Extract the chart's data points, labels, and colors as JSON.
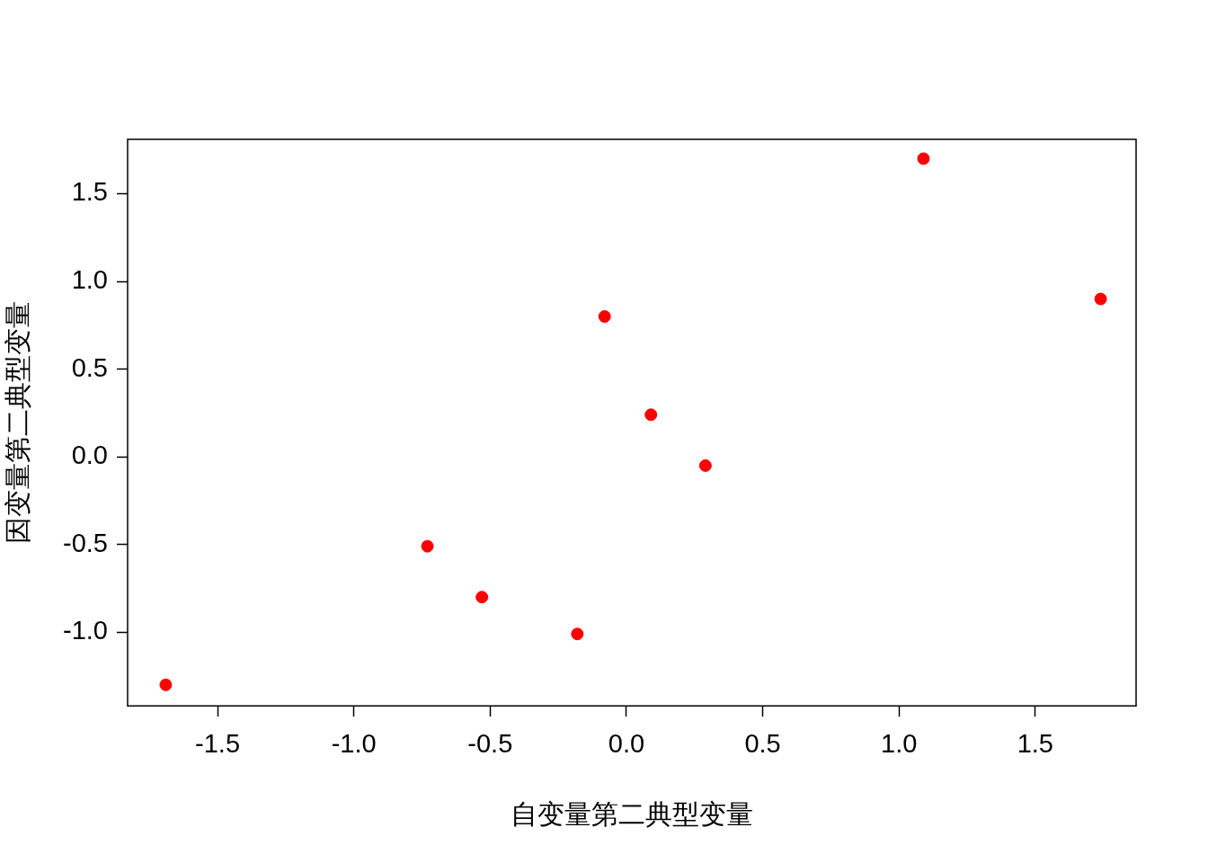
{
  "chart_data": {
    "type": "scatter",
    "xlabel": "自变量第二典型变量",
    "ylabel": "因变量第二典型变量",
    "marker": "circle",
    "x": [
      -1.69,
      -0.73,
      -0.53,
      -0.18,
      -0.08,
      0.09,
      0.29,
      1.09,
      1.74
    ],
    "series": [
      {
        "color": "#ff0000",
        "values": [
          -1.3,
          -0.51,
          -0.8,
          -1.01,
          0.8,
          0.24,
          -0.05,
          1.7,
          0.9
        ]
      }
    ],
    "xlim": [
      -1.83,
      1.87
    ],
    "ylim": [
      -1.42,
      1.81
    ],
    "xticks": [
      {
        "value": -1.5,
        "label": "-1.5"
      },
      {
        "value": -1,
        "label": "-1.0"
      },
      {
        "value": -0.5,
        "label": "-0.5"
      },
      {
        "value": 0,
        "label": "0.0"
      },
      {
        "value": 0.5,
        "label": "0.5"
      },
      {
        "value": 1,
        "label": "1.0"
      },
      {
        "value": 1.5,
        "label": "1.5"
      }
    ],
    "yticks": [
      {
        "value": -1,
        "label": "-1.0"
      },
      {
        "value": -0.5,
        "label": "-0.5"
      },
      {
        "value": 0,
        "label": "0.0"
      },
      {
        "value": 0.5,
        "label": "0.5"
      },
      {
        "value": 1,
        "label": "1.0"
      },
      {
        "value": 1.5,
        "label": "1.5"
      }
    ]
  }
}
